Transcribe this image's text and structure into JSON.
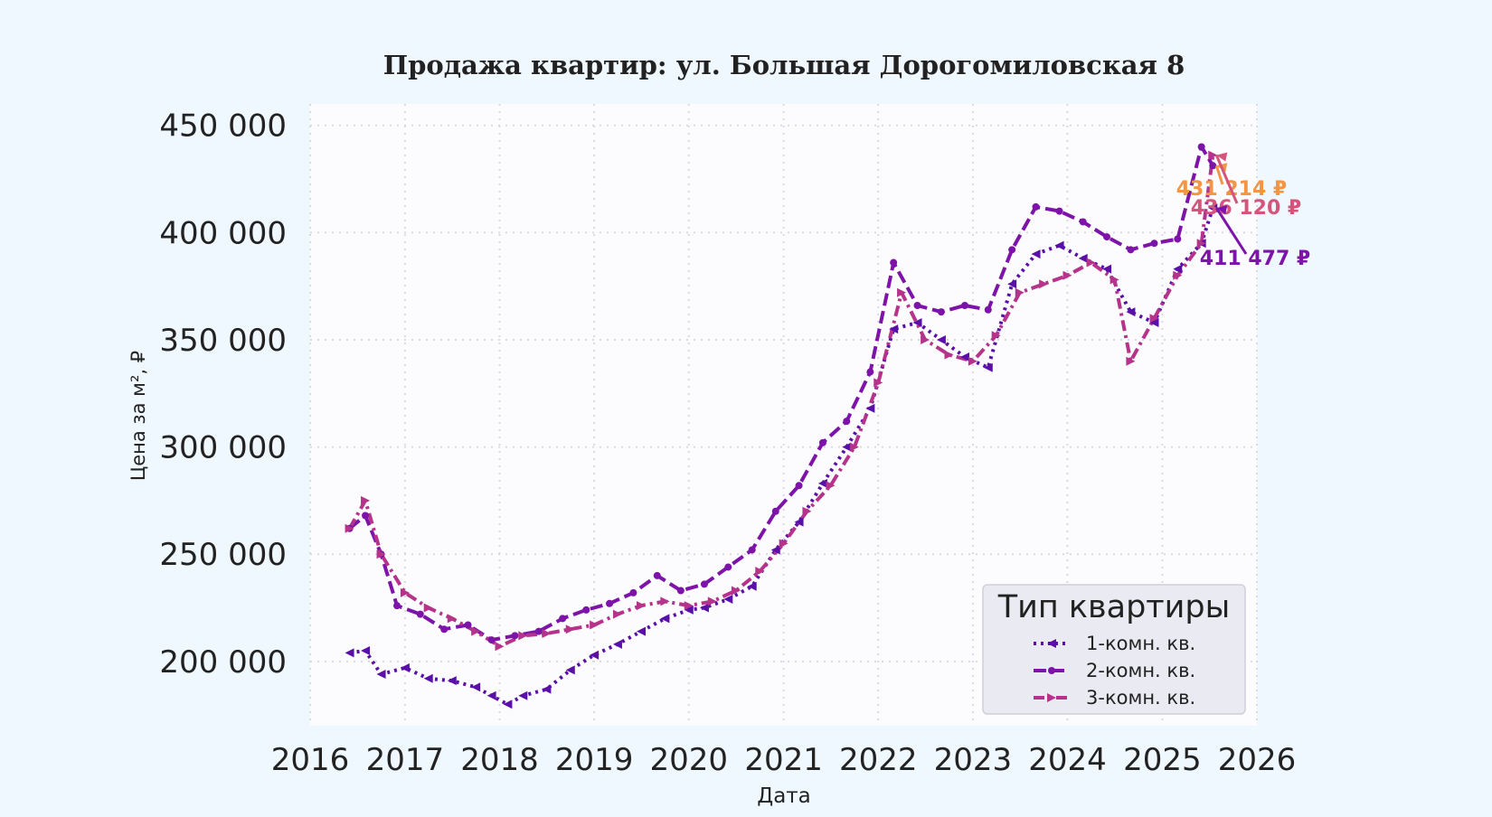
{
  "chart_data": {
    "type": "line",
    "title": "Продажа квартир: ул. Большая Дорогомиловская 8",
    "xlabel": "Дата",
    "ylabel": "Цена за м², ₽",
    "xlim": [
      "2016-01-01",
      "2026-01-01"
    ],
    "ylim": [
      170000,
      460000
    ],
    "grid": true,
    "x_ticks": [
      "2016",
      "2017",
      "2018",
      "2019",
      "2020",
      "2021",
      "2022",
      "2023",
      "2024",
      "2025",
      "2026"
    ],
    "y_ticks": [
      200000,
      250000,
      300000,
      350000,
      400000,
      450000
    ],
    "y_tick_labels": [
      "200 000",
      "250 000",
      "300 000",
      "350 000",
      "400 000",
      "450 000"
    ],
    "legend": {
      "title": "Тип квартиры",
      "position": "lower-right"
    },
    "series": [
      {
        "name": "1-комн. кв.",
        "color": "#5a0fa8",
        "dash": "dotted",
        "marker": "triangle-left",
        "points": [
          [
            "2016-06-01",
            204000
          ],
          [
            "2016-08-01",
            205000
          ],
          [
            "2016-10-01",
            194000
          ],
          [
            "2017-01-01",
            197000
          ],
          [
            "2017-04-01",
            192000
          ],
          [
            "2017-07-01",
            191000
          ],
          [
            "2017-10-01",
            188000
          ],
          [
            "2017-12-01",
            184000
          ],
          [
            "2018-02-01",
            180000
          ],
          [
            "2018-04-01",
            184000
          ],
          [
            "2018-07-01",
            187000
          ],
          [
            "2018-10-01",
            196000
          ],
          [
            "2019-01-01",
            203000
          ],
          [
            "2019-04-01",
            208000
          ],
          [
            "2019-07-01",
            214000
          ],
          [
            "2019-10-01",
            220000
          ],
          [
            "2020-01-01",
            224000
          ],
          [
            "2020-03-01",
            225000
          ],
          [
            "2020-06-01",
            229000
          ],
          [
            "2020-09-01",
            235000
          ],
          [
            "2020-12-01",
            252000
          ],
          [
            "2021-03-01",
            265000
          ],
          [
            "2021-06-01",
            283000
          ],
          [
            "2021-09-01",
            300000
          ],
          [
            "2021-12-01",
            318000
          ],
          [
            "2022-03-01",
            355000
          ],
          [
            "2022-06-01",
            358000
          ],
          [
            "2022-09-01",
            350000
          ],
          [
            "2022-12-01",
            342000
          ],
          [
            "2023-03-01",
            337000
          ],
          [
            "2023-06-01",
            376000
          ],
          [
            "2023-09-01",
            390000
          ],
          [
            "2023-12-01",
            394000
          ],
          [
            "2024-03-01",
            388000
          ],
          [
            "2024-06-01",
            383000
          ],
          [
            "2024-09-01",
            363000
          ],
          [
            "2024-12-01",
            358000
          ],
          [
            "2025-03-01",
            383000
          ],
          [
            "2025-06-01",
            395000
          ],
          [
            "2025-07-15",
            411477
          ]
        ]
      },
      {
        "name": "2-комн. кв.",
        "color": "#7d13a8",
        "dash": "dashed",
        "marker": "dot",
        "points": [
          [
            "2016-06-01",
            262000
          ],
          [
            "2016-08-01",
            268000
          ],
          [
            "2016-10-01",
            250000
          ],
          [
            "2016-12-01",
            226000
          ],
          [
            "2017-03-01",
            222000
          ],
          [
            "2017-06-01",
            215000
          ],
          [
            "2017-09-01",
            217000
          ],
          [
            "2017-12-01",
            210000
          ],
          [
            "2018-03-01",
            212000
          ],
          [
            "2018-06-01",
            214000
          ],
          [
            "2018-09-01",
            220000
          ],
          [
            "2018-12-01",
            224000
          ],
          [
            "2019-03-01",
            227000
          ],
          [
            "2019-06-01",
            232000
          ],
          [
            "2019-09-01",
            240000
          ],
          [
            "2019-12-01",
            233000
          ],
          [
            "2020-03-01",
            236000
          ],
          [
            "2020-06-01",
            244000
          ],
          [
            "2020-09-01",
            252000
          ],
          [
            "2020-12-01",
            270000
          ],
          [
            "2021-03-01",
            282000
          ],
          [
            "2021-06-01",
            302000
          ],
          [
            "2021-09-01",
            312000
          ],
          [
            "2021-12-01",
            335000
          ],
          [
            "2022-03-01",
            386000
          ],
          [
            "2022-06-01",
            366000
          ],
          [
            "2022-09-01",
            363000
          ],
          [
            "2022-12-01",
            366000
          ],
          [
            "2023-03-01",
            364000
          ],
          [
            "2023-06-01",
            392000
          ],
          [
            "2023-09-01",
            412000
          ],
          [
            "2023-12-01",
            410000
          ],
          [
            "2024-03-01",
            405000
          ],
          [
            "2024-06-01",
            398000
          ],
          [
            "2024-09-01",
            392000
          ],
          [
            "2024-12-01",
            395000
          ],
          [
            "2025-03-01",
            397000
          ],
          [
            "2025-06-01",
            440000
          ],
          [
            "2025-07-15",
            431214
          ]
        ]
      },
      {
        "name": "3-комн. кв.",
        "color": "#b5338a",
        "dash": "dashdot",
        "marker": "triangle-right",
        "points": [
          [
            "2016-06-01",
            262000
          ],
          [
            "2016-08-01",
            275000
          ],
          [
            "2016-10-01",
            250000
          ],
          [
            "2017-01-01",
            232000
          ],
          [
            "2017-04-01",
            225000
          ],
          [
            "2017-07-01",
            220000
          ],
          [
            "2017-10-01",
            214000
          ],
          [
            "2018-01-01",
            207000
          ],
          [
            "2018-04-01",
            212000
          ],
          [
            "2018-07-01",
            213000
          ],
          [
            "2018-10-01",
            215000
          ],
          [
            "2019-01-01",
            217000
          ],
          [
            "2019-04-01",
            222000
          ],
          [
            "2019-07-01",
            226000
          ],
          [
            "2019-10-01",
            228000
          ],
          [
            "2020-01-01",
            226000
          ],
          [
            "2020-04-01",
            228000
          ],
          [
            "2020-07-01",
            233000
          ],
          [
            "2020-10-01",
            242000
          ],
          [
            "2021-01-01",
            255000
          ],
          [
            "2021-04-01",
            270000
          ],
          [
            "2021-07-01",
            282000
          ],
          [
            "2021-10-01",
            300000
          ],
          [
            "2022-01-01",
            330000
          ],
          [
            "2022-04-01",
            372000
          ],
          [
            "2022-07-01",
            350000
          ],
          [
            "2022-10-01",
            343000
          ],
          [
            "2023-01-01",
            340000
          ],
          [
            "2023-04-01",
            352000
          ],
          [
            "2023-07-01",
            372000
          ],
          [
            "2023-10-01",
            376000
          ],
          [
            "2024-01-01",
            380000
          ],
          [
            "2024-04-01",
            386000
          ],
          [
            "2024-07-01",
            378000
          ],
          [
            "2024-09-01",
            340000
          ],
          [
            "2024-12-01",
            360000
          ],
          [
            "2025-03-01",
            380000
          ],
          [
            "2025-06-01",
            395000
          ],
          [
            "2025-07-15",
            436120
          ]
        ]
      }
    ],
    "annotations": [
      {
        "series": "2-комн. кв.",
        "text": "431 214 ₽",
        "value": 431214,
        "color": "#f29547"
      },
      {
        "series": "3-комн. кв.",
        "text": "436 120 ₽",
        "value": 436120,
        "color": "#d4547a"
      },
      {
        "series": "1-комн. кв.",
        "text": "411 477 ₽",
        "value": 411477,
        "color": "#7d13a8"
      }
    ]
  }
}
